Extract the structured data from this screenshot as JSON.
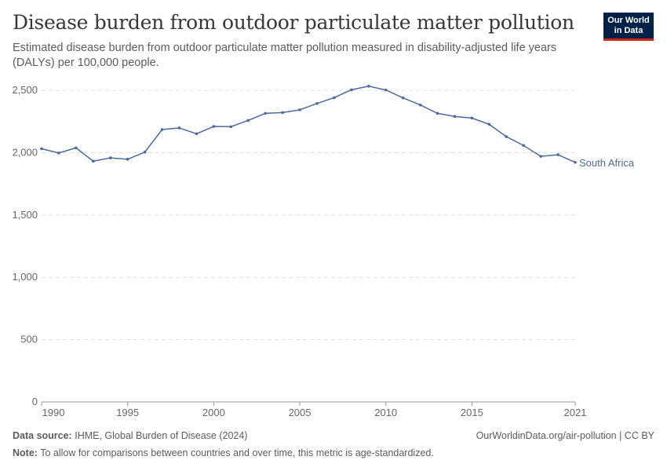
{
  "header": {
    "title": "Disease burden from outdoor particulate matter pollution",
    "subtitle": "Estimated disease burden from outdoor particulate matter pollution measured in disability-adjusted life years (DALYs) per 100,000 people.",
    "logo_text": "Our World in Data"
  },
  "footer": {
    "source_label": "Data source:",
    "source": "IHME, Global Burden of Disease (2024)",
    "url": "OurWorldinData.org/air-pollution | CC BY",
    "note_label": "Note:",
    "note": "To allow for comparisons between countries and over time, this metric is age-standardized."
  },
  "colors": {
    "series": "#4c6a9c",
    "logo_bg": "#002147",
    "logo_accent": "#ce261e"
  },
  "chart_data": {
    "type": "line",
    "x": [
      1990,
      1991,
      1992,
      1993,
      1994,
      1995,
      1996,
      1997,
      1998,
      1999,
      2000,
      2001,
      2002,
      2003,
      2004,
      2005,
      2006,
      2007,
      2008,
      2009,
      2010,
      2011,
      2012,
      2013,
      2014,
      2015,
      2016,
      2017,
      2018,
      2019,
      2020,
      2021
    ],
    "series": [
      {
        "name": "South Africa",
        "values": [
          2031,
          1997,
          2038,
          1931,
          1958,
          1947,
          2004,
          2185,
          2198,
          2151,
          2210,
          2208,
          2258,
          2315,
          2321,
          2343,
          2394,
          2441,
          2504,
          2533,
          2502,
          2439,
          2382,
          2315,
          2290,
          2277,
          2227,
          2128,
          2057,
          1970,
          1983,
          1922
        ]
      }
    ],
    "xlim": [
      1990,
      2021
    ],
    "ylim": [
      0,
      2500
    ],
    "xticks": [
      1990,
      1995,
      2000,
      2005,
      2010,
      2015,
      2021
    ],
    "yticks": [
      0,
      500,
      1000,
      1500,
      2000,
      2500
    ],
    "ytick_labels": [
      "0",
      "500",
      "1,000",
      "1,500",
      "2,000",
      "2,500"
    ],
    "grid": "horizontal dashed",
    "legend": "inline-right"
  }
}
